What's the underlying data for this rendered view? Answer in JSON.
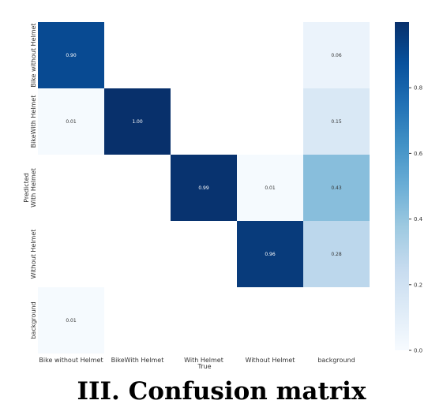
{
  "caption": "III. Confusion matrix",
  "chart_data": {
    "type": "heatmap",
    "title": "",
    "xlabel": "True",
    "ylabel": "Predicted",
    "x_categories": [
      "Bike without Helmet",
      "BikeWith Helmet",
      "With Helmet",
      "Without Helmet",
      "background"
    ],
    "y_categories": [
      "Bike without Helmet",
      "BikeWith Helmet",
      "With Helmet",
      "Without Helmet",
      "background"
    ],
    "values": [
      [
        0.9,
        null,
        null,
        null,
        0.06
      ],
      [
        0.01,
        1.0,
        null,
        null,
        0.15
      ],
      [
        null,
        null,
        0.99,
        0.01,
        0.43
      ],
      [
        null,
        null,
        null,
        0.96,
        0.28
      ],
      [
        0.01,
        null,
        null,
        null,
        null
      ]
    ],
    "colorbar": {
      "range": [
        0.0,
        1.0
      ],
      "ticks": [
        "0.0",
        "0.2",
        "0.4",
        "0.6",
        "0.8"
      ],
      "colormap": "Blues"
    },
    "colors": {
      "low": "#f7fbff",
      "high": "#08306b"
    }
  }
}
